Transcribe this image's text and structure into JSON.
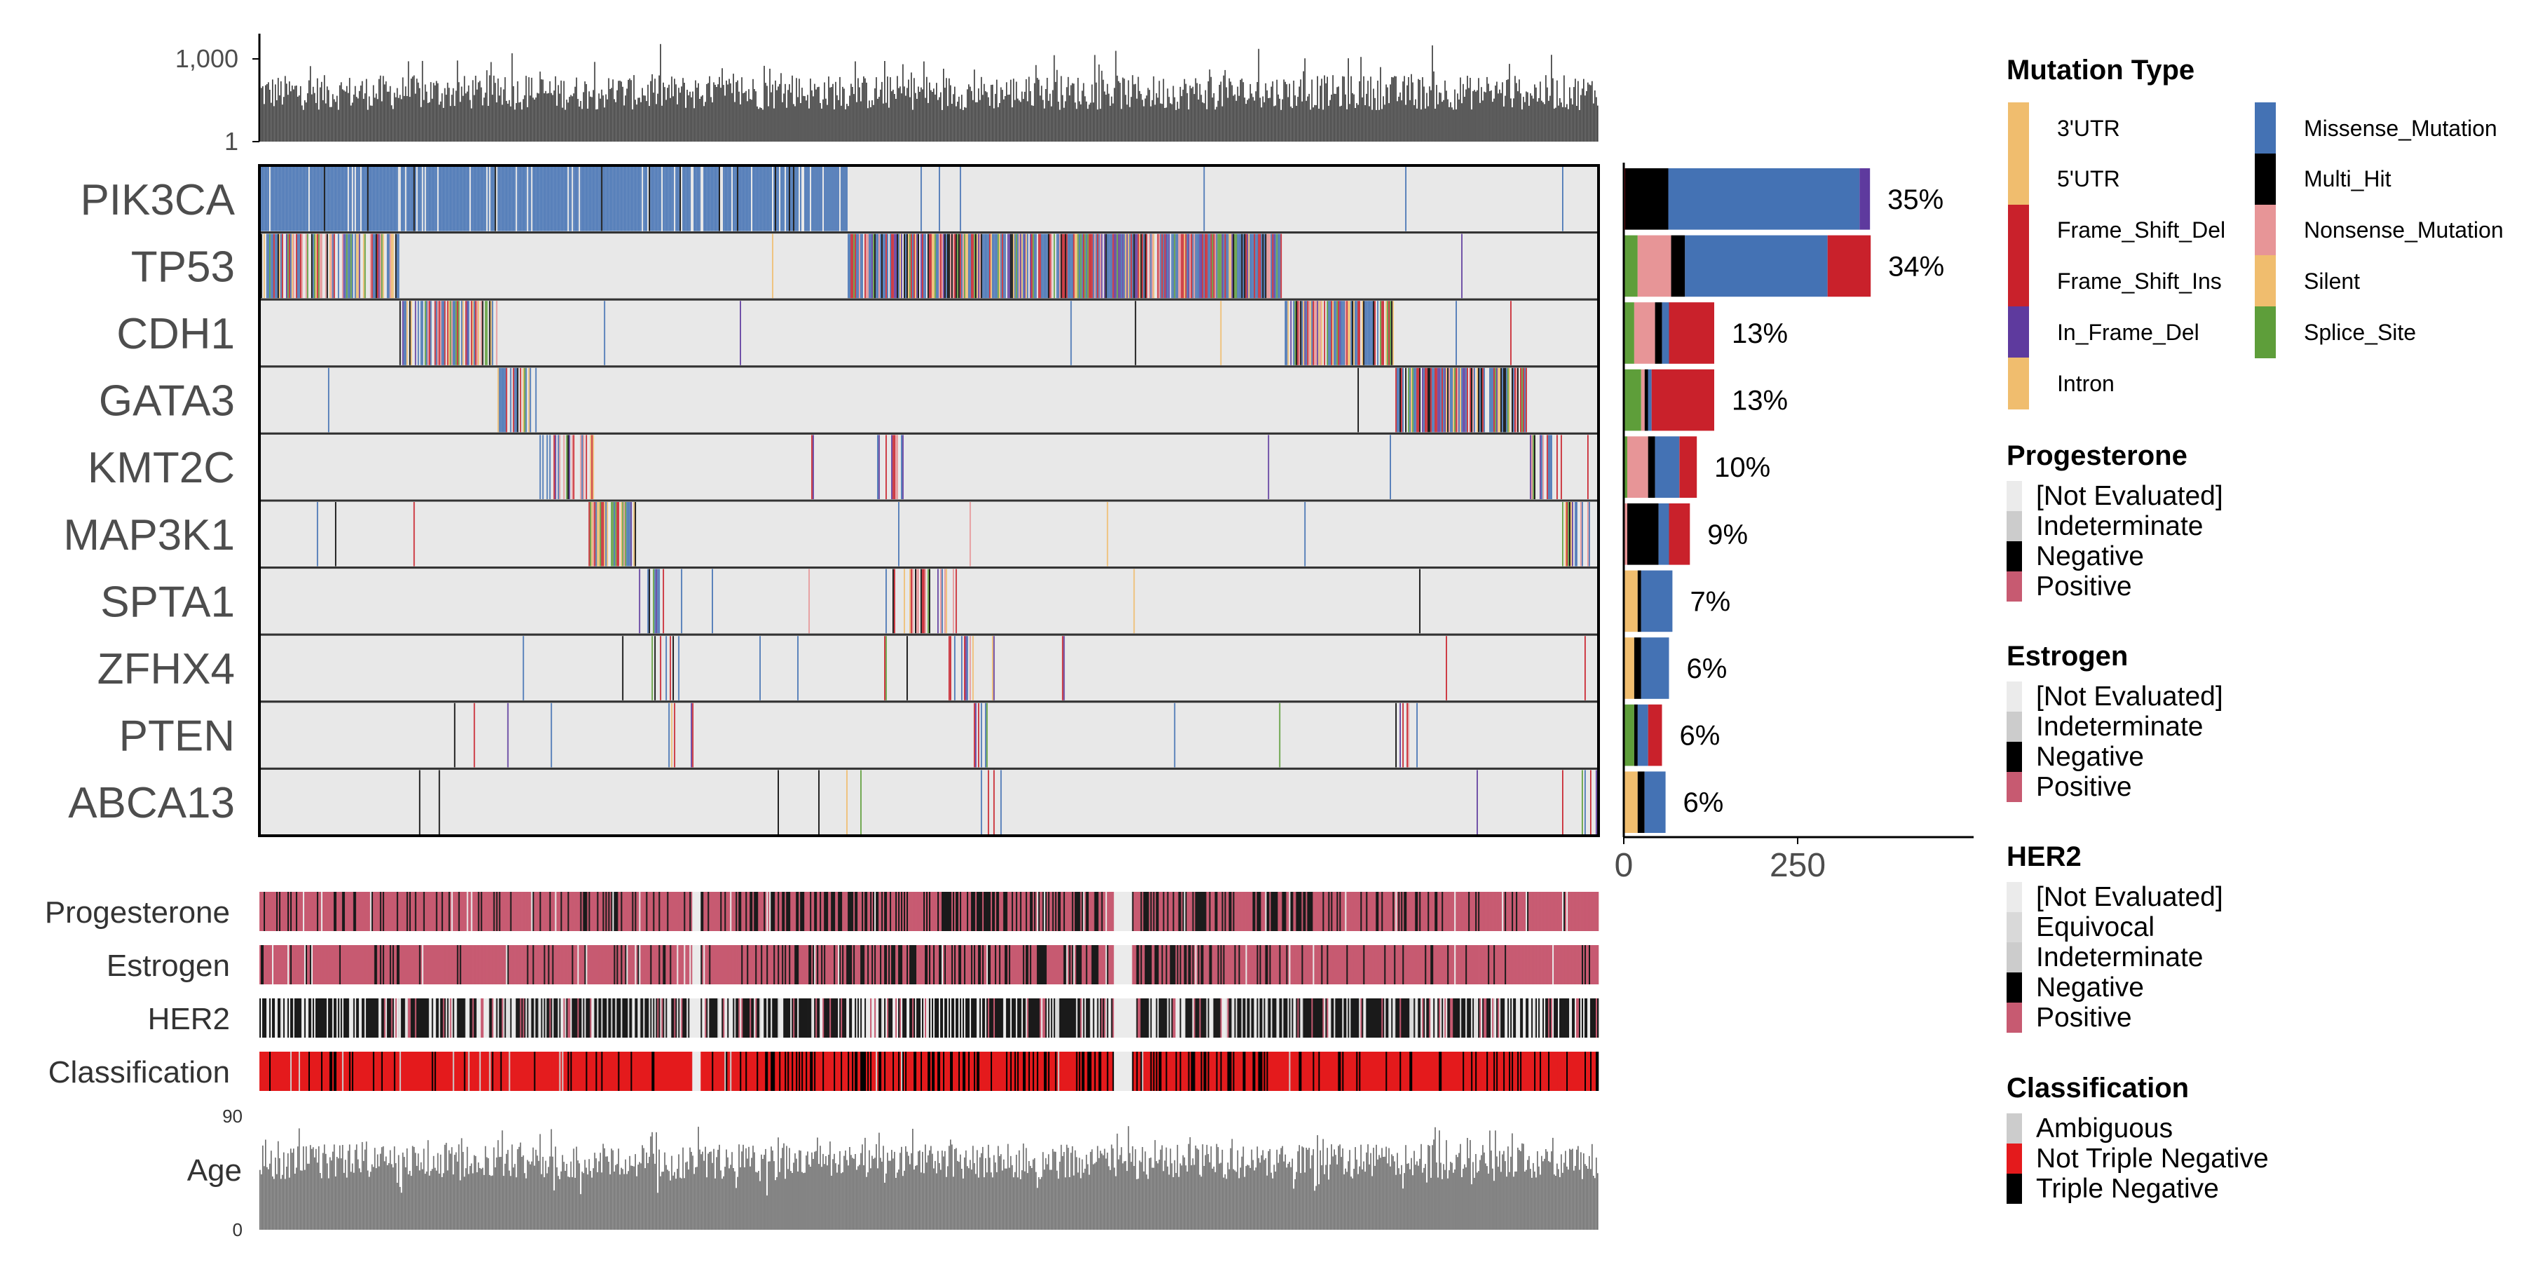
{
  "chart_data": {
    "type": "heatmap",
    "genes": [
      "PIK3CA",
      "TP53",
      "CDH1",
      "GATA3",
      "KMT2C",
      "MAP3K1",
      "SPTA1",
      "ZFHX4",
      "PTEN",
      "ABCA13"
    ],
    "percentages": [
      "35%",
      "34%",
      "13%",
      "13%",
      "10%",
      "9%",
      "7%",
      "6%",
      "6%",
      "6%"
    ],
    "gene_counts": [
      {
        "gene": "PIK3CA",
        "segments": [
          {
            "type": "Frame_Shift_Del",
            "value": 2
          },
          {
            "type": "Multi_Hit",
            "value": 62
          },
          {
            "type": "Missense_Mutation",
            "value": 275
          },
          {
            "type": "In_Frame_Del",
            "value": 15
          }
        ]
      },
      {
        "gene": "TP53",
        "segments": [
          {
            "type": "Splice_Site",
            "value": 20
          },
          {
            "type": "Nonsense_Mutation",
            "value": 48
          },
          {
            "type": "Multi_Hit",
            "value": 20
          },
          {
            "type": "Missense_Mutation",
            "value": 205
          },
          {
            "type": "Frame_Shift_Del",
            "value": 62
          }
        ]
      },
      {
        "gene": "CDH1",
        "segments": [
          {
            "type": "Splice_Site",
            "value": 15
          },
          {
            "type": "Nonsense_Mutation",
            "value": 30
          },
          {
            "type": "Multi_Hit",
            "value": 10
          },
          {
            "type": "Missense_Mutation",
            "value": 10
          },
          {
            "type": "Frame_Shift_Del",
            "value": 65
          }
        ]
      },
      {
        "gene": "GATA3",
        "segments": [
          {
            "type": "Splice_Site",
            "value": 25
          },
          {
            "type": "Nonsense_Mutation",
            "value": 5
          },
          {
            "type": "Multi_Hit",
            "value": 5
          },
          {
            "type": "Missense_Mutation",
            "value": 5
          },
          {
            "type": "Frame_Shift_Del",
            "value": 90
          }
        ]
      },
      {
        "gene": "KMT2C",
        "segments": [
          {
            "type": "Splice_Site",
            "value": 5
          },
          {
            "type": "Nonsense_Mutation",
            "value": 30
          },
          {
            "type": "Multi_Hit",
            "value": 10
          },
          {
            "type": "Missense_Mutation",
            "value": 35
          },
          {
            "type": "Frame_Shift_Del",
            "value": 25
          }
        ]
      },
      {
        "gene": "MAP3K1",
        "segments": [
          {
            "type": "Nonsense_Mutation",
            "value": 5
          },
          {
            "type": "Multi_Hit",
            "value": 45
          },
          {
            "type": "Missense_Mutation",
            "value": 15
          },
          {
            "type": "Frame_Shift_Del",
            "value": 30
          }
        ]
      },
      {
        "gene": "SPTA1",
        "segments": [
          {
            "type": "3'UTR",
            "value": 20
          },
          {
            "type": "Multi_Hit",
            "value": 5
          },
          {
            "type": "Missense_Mutation",
            "value": 45
          }
        ]
      },
      {
        "gene": "ZFHX4",
        "segments": [
          {
            "type": "3'UTR",
            "value": 15
          },
          {
            "type": "Multi_Hit",
            "value": 10
          },
          {
            "type": "Missense_Mutation",
            "value": 40
          }
        ]
      },
      {
        "gene": "PTEN",
        "segments": [
          {
            "type": "Splice_Site",
            "value": 15
          },
          {
            "type": "Multi_Hit",
            "value": 5
          },
          {
            "type": "Missense_Mutation",
            "value": 15
          },
          {
            "type": "Frame_Shift_Del",
            "value": 20
          }
        ]
      },
      {
        "gene": "ABCA13",
        "segments": [
          {
            "type": "3'UTR",
            "value": 20
          },
          {
            "type": "Multi_Hit",
            "value": 10
          },
          {
            "type": "Missense_Mutation",
            "value": 30
          }
        ]
      }
    ],
    "count_axis": {
      "ticks": [
        "0",
        "250"
      ],
      "tick_values": [
        0,
        250
      ],
      "xlim": [
        0,
        500
      ]
    },
    "tmb_axis": {
      "scale": "log",
      "ticks": [
        "1,000",
        "1"
      ],
      "tick_values": [
        1000,
        1
      ]
    },
    "age_axis": {
      "ticks": [
        "90",
        "0"
      ],
      "tick_values": [
        90,
        0
      ],
      "ylim": [
        0,
        90
      ]
    },
    "clinical_tracks": [
      "Progesterone",
      "Estrogen",
      "HER2",
      "Classification"
    ],
    "age_label": "Age",
    "legend": {
      "mutation_title": "Mutation Type",
      "mutation_types": [
        {
          "name": "3'UTR",
          "color": "#F0BD6E"
        },
        {
          "name": "5'UTR",
          "color": "#F0BD6E"
        },
        {
          "name": "Frame_Shift_Del",
          "color": "#C9212B"
        },
        {
          "name": "Frame_Shift_Ins",
          "color": "#C9212B"
        },
        {
          "name": "In_Frame_Del",
          "color": "#5E3A9E"
        },
        {
          "name": "Intron",
          "color": "#F0BD6E"
        },
        {
          "name": "Missense_Mutation",
          "color": "#4472B4"
        },
        {
          "name": "Multi_Hit",
          "color": "#000000"
        },
        {
          "name": "Nonsense_Mutation",
          "color": "#E79597"
        },
        {
          "name": "Silent",
          "color": "#F0BD6E"
        },
        {
          "name": "Splice_Site",
          "color": "#5E9E3A"
        }
      ],
      "clinical": [
        {
          "title": "Progesterone",
          "items": [
            {
              "name": "[Not Evaluated]",
              "color": "#EBEBEB"
            },
            {
              "name": "Indeterminate",
              "color": "#CCCCCC"
            },
            {
              "name": "Negative",
              "color": "#000000"
            },
            {
              "name": "Positive",
              "color": "#C75A71"
            }
          ]
        },
        {
          "title": "Estrogen",
          "items": [
            {
              "name": "[Not Evaluated]",
              "color": "#EBEBEB"
            },
            {
              "name": "Indeterminate",
              "color": "#CCCCCC"
            },
            {
              "name": "Negative",
              "color": "#000000"
            },
            {
              "name": "Positive",
              "color": "#C75A71"
            }
          ]
        },
        {
          "title": "HER2",
          "items": [
            {
              "name": "[Not Evaluated]",
              "color": "#EBEBEB"
            },
            {
              "name": "Equivocal",
              "color": "#D9D9D9"
            },
            {
              "name": "Indeterminate",
              "color": "#CCCCCC"
            },
            {
              "name": "Negative",
              "color": "#000000"
            },
            {
              "name": "Positive",
              "color": "#C75A71"
            }
          ]
        },
        {
          "title": "Classification",
          "items": [
            {
              "name": "Ambiguous",
              "color": "#CCCCCC"
            },
            {
              "name": "Not Triple Negative",
              "color": "#E41A1C"
            },
            {
              "name": "Triple Negative",
              "color": "#000000"
            }
          ]
        }
      ]
    }
  }
}
